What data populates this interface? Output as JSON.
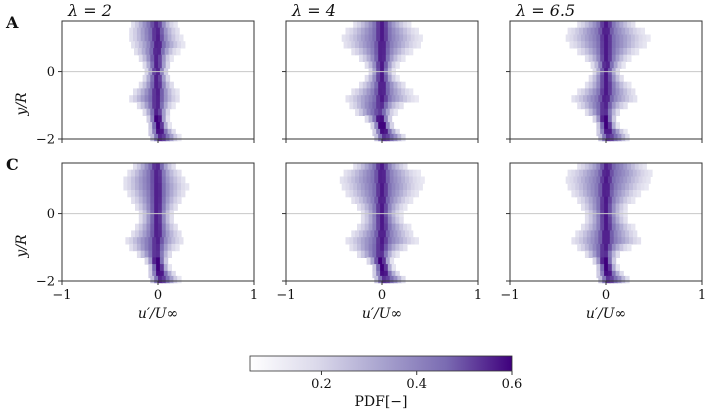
{
  "chart_data": [
    {
      "type": "heatmap",
      "row_label": "A",
      "title": "λ = 2",
      "xlabel": "",
      "ylabel": "y/R",
      "xlim": [
        -1,
        1
      ],
      "ylim": [
        -2,
        1.5
      ],
      "colormap": "Purples",
      "profile": {
        "y": [
          1.4,
          1.2,
          1.0,
          0.8,
          0.6,
          0.4,
          0.2,
          0.0,
          -0.2,
          -0.4,
          -0.6,
          -0.8,
          -1.0,
          -1.2,
          -1.4,
          -1.6,
          -1.8,
          -1.95
        ],
        "u_low": [
          -0.28,
          -0.3,
          -0.3,
          -0.28,
          -0.25,
          -0.2,
          -0.16,
          -0.14,
          -0.16,
          -0.2,
          -0.26,
          -0.3,
          -0.22,
          -0.16,
          -0.12,
          -0.1,
          -0.1,
          -0.08
        ],
        "u_high": [
          0.18,
          0.22,
          0.24,
          0.26,
          0.2,
          0.14,
          0.12,
          0.1,
          0.12,
          0.16,
          0.2,
          0.22,
          0.16,
          0.12,
          0.1,
          0.12,
          0.18,
          0.22
        ]
      }
    },
    {
      "type": "heatmap",
      "row_label": "",
      "title": "λ = 4",
      "xlabel": "",
      "ylabel": "",
      "xlim": [
        -1,
        1
      ],
      "ylim": [
        -2,
        1.5
      ],
      "colormap": "Purples",
      "profile": {
        "y": [
          1.4,
          1.2,
          1.0,
          0.8,
          0.6,
          0.4,
          0.2,
          0.0,
          -0.2,
          -0.4,
          -0.6,
          -0.8,
          -1.0,
          -1.2,
          -1.4,
          -1.6,
          -1.8,
          -1.95
        ],
        "u_low": [
          -0.3,
          -0.38,
          -0.42,
          -0.4,
          -0.32,
          -0.24,
          -0.18,
          -0.14,
          -0.18,
          -0.24,
          -0.32,
          -0.38,
          -0.34,
          -0.28,
          -0.18,
          -0.12,
          -0.1,
          -0.08
        ],
        "u_high": [
          0.28,
          0.36,
          0.4,
          0.38,
          0.3,
          0.22,
          0.16,
          0.12,
          0.16,
          0.24,
          0.3,
          0.34,
          0.22,
          0.14,
          0.1,
          0.12,
          0.18,
          0.24
        ]
      }
    },
    {
      "type": "heatmap",
      "row_label": "",
      "title": "λ = 6.5",
      "xlabel": "",
      "ylabel": "",
      "xlim": [
        -1,
        1
      ],
      "ylim": [
        -2,
        1.5
      ],
      "colormap": "Purples",
      "profile": {
        "y": [
          1.4,
          1.2,
          1.0,
          0.8,
          0.6,
          0.4,
          0.2,
          0.0,
          -0.2,
          -0.4,
          -0.6,
          -0.8,
          -1.0,
          -1.2,
          -1.4,
          -1.6,
          -1.8,
          -1.95
        ],
        "u_low": [
          -0.3,
          -0.4,
          -0.42,
          -0.38,
          -0.3,
          -0.22,
          -0.16,
          -0.14,
          -0.18,
          -0.22,
          -0.3,
          -0.36,
          -0.3,
          -0.22,
          -0.14,
          -0.1,
          -0.1,
          -0.08
        ],
        "u_high": [
          0.3,
          0.38,
          0.42,
          0.4,
          0.32,
          0.24,
          0.18,
          0.14,
          0.18,
          0.24,
          0.3,
          0.32,
          0.22,
          0.14,
          0.1,
          0.12,
          0.2,
          0.24
        ]
      }
    },
    {
      "type": "heatmap",
      "row_label": "C",
      "title": "",
      "xlabel": "u′/U∞",
      "ylabel": "y/R",
      "xlim": [
        -1,
        1
      ],
      "ylim": [
        -2,
        1.5
      ],
      "colormap": "Purples",
      "profile": {
        "y": [
          1.4,
          1.2,
          1.0,
          0.8,
          0.6,
          0.4,
          0.2,
          0.0,
          -0.2,
          -0.4,
          -0.6,
          -0.8,
          -1.0,
          -1.2,
          -1.4,
          -1.6,
          -1.8,
          -1.95
        ],
        "u_low": [
          -0.26,
          -0.32,
          -0.36,
          -0.36,
          -0.32,
          -0.28,
          -0.24,
          -0.2,
          -0.2,
          -0.24,
          -0.28,
          -0.34,
          -0.3,
          -0.22,
          -0.14,
          -0.1,
          -0.1,
          -0.08
        ],
        "u_high": [
          0.18,
          0.24,
          0.28,
          0.3,
          0.28,
          0.24,
          0.2,
          0.16,
          0.16,
          0.2,
          0.24,
          0.26,
          0.2,
          0.14,
          0.1,
          0.12,
          0.18,
          0.22
        ]
      }
    },
    {
      "type": "heatmap",
      "row_label": "",
      "title": "",
      "xlabel": "u′/U∞",
      "ylabel": "",
      "xlim": [
        -1,
        1
      ],
      "ylim": [
        -2,
        1.5
      ],
      "colormap": "Purples",
      "profile": {
        "y": [
          1.4,
          1.2,
          1.0,
          0.8,
          0.6,
          0.4,
          0.2,
          0.0,
          -0.2,
          -0.4,
          -0.6,
          -0.8,
          -1.0,
          -1.2,
          -1.4,
          -1.6,
          -1.8,
          -1.95
        ],
        "u_low": [
          -0.3,
          -0.4,
          -0.44,
          -0.42,
          -0.38,
          -0.32,
          -0.26,
          -0.22,
          -0.22,
          -0.26,
          -0.32,
          -0.38,
          -0.34,
          -0.26,
          -0.16,
          -0.1,
          -0.1,
          -0.08
        ],
        "u_high": [
          0.26,
          0.36,
          0.4,
          0.4,
          0.36,
          0.3,
          0.24,
          0.2,
          0.22,
          0.28,
          0.32,
          0.36,
          0.26,
          0.16,
          0.1,
          0.12,
          0.18,
          0.24
        ]
      }
    },
    {
      "type": "heatmap",
      "row_label": "",
      "title": "",
      "xlabel": "u′/U∞",
      "ylabel": "",
      "xlim": [
        -1,
        1
      ],
      "ylim": [
        -2,
        1.5
      ],
      "colormap": "Purples",
      "profile": {
        "y": [
          1.4,
          1.2,
          1.0,
          0.8,
          0.6,
          0.4,
          0.2,
          0.0,
          -0.2,
          -0.4,
          -0.6,
          -0.8,
          -1.0,
          -1.2,
          -1.4,
          -1.6,
          -1.8,
          -1.95
        ],
        "u_low": [
          -0.3,
          -0.4,
          -0.42,
          -0.4,
          -0.36,
          -0.3,
          -0.26,
          -0.22,
          -0.22,
          -0.26,
          -0.32,
          -0.36,
          -0.3,
          -0.22,
          -0.14,
          -0.1,
          -0.1,
          -0.08
        ],
        "u_high": [
          0.4,
          0.46,
          0.44,
          0.4,
          0.34,
          0.28,
          0.22,
          0.2,
          0.22,
          0.28,
          0.32,
          0.36,
          0.24,
          0.14,
          0.1,
          0.12,
          0.18,
          0.24
        ]
      }
    }
  ],
  "axes": {
    "x_ticks": [
      -1,
      0,
      1
    ],
    "x_tick_labels": [
      "−1",
      "0",
      "1"
    ],
    "y_ticks": [
      0,
      -2
    ],
    "y_tick_labels": [
      "0",
      "−2"
    ],
    "reference_line_y": 0,
    "grid": false
  },
  "colorbar": {
    "label": "PDF[−]",
    "min": 0.05,
    "max": 0.6,
    "ticks": [
      0.2,
      0.4,
      0.6
    ],
    "tick_labels": [
      "0.2",
      "0.4",
      "0.6"
    ],
    "color_low": "#ffffff",
    "color_high": "#3f007d",
    "placement": "bottom-center"
  },
  "colors": {
    "axis": "#333333",
    "reference_line": "#c8c8c8",
    "text": "#111111"
  }
}
